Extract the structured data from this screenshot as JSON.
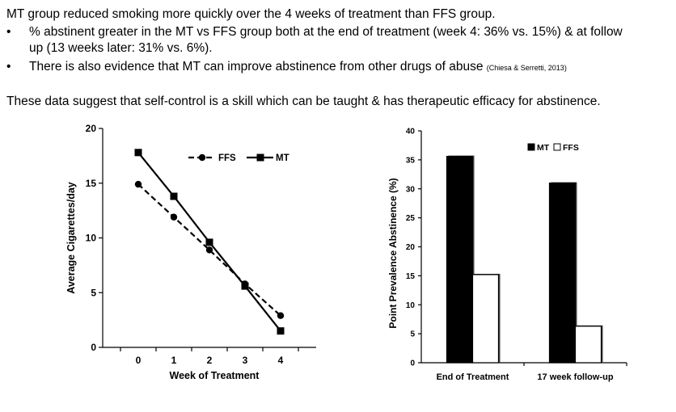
{
  "slide": {
    "heading": "MT group reduced smoking more quickly over the 4 weeks of treatment than FFS group.",
    "bullets": [
      {
        "symbol": "•",
        "line1": "% abstinent greater in the MT vs FFS group both at the end of treatment (week 4: 36% vs. 15%) & at follow",
        "line2": "up (13 weeks later: 31% vs. 6%)."
      },
      {
        "symbol": "•",
        "line1": "There is also evidence that MT can improve abstinence from other drugs of abuse",
        "citation": "(Chiesa & Serretti, 2013)"
      }
    ],
    "conclusion": "These data suggest that self-control is a skill which can be taught & has therapeutic efficacy for abstinence."
  },
  "chart_data": [
    {
      "type": "line",
      "x": [
        0,
        1,
        2,
        3,
        4
      ],
      "xlabel": "Week of Treatment",
      "ylabel": "Average Cigarettes/day",
      "ylim": [
        0,
        20
      ],
      "xlim": [
        -1,
        5
      ],
      "yticks": [
        0,
        5,
        10,
        15,
        20
      ],
      "legend_position": "top",
      "series": [
        {
          "name": "FFS",
          "values": [
            14.9,
            11.9,
            8.9,
            5.8,
            2.9
          ],
          "style": "dashed",
          "marker": "circle",
          "color": "#000000"
        },
        {
          "name": "MT",
          "values": [
            17.8,
            13.8,
            9.6,
            5.6,
            1.5
          ],
          "style": "solid",
          "marker": "square",
          "color": "#000000"
        }
      ]
    },
    {
      "type": "bar",
      "categories": [
        "End of Treatment",
        "17 week follow-up"
      ],
      "ylabel": "Point Prevalence Abstinence (%)",
      "ylim": [
        0,
        40
      ],
      "yticks": [
        0,
        5,
        10,
        15,
        20,
        25,
        30,
        35,
        40
      ],
      "legend_position": "top-right",
      "series": [
        {
          "name": "MT",
          "values": [
            35.6,
            31.0
          ],
          "fill": "#000000"
        },
        {
          "name": "FFS",
          "values": [
            15.2,
            6.3
          ],
          "fill": "#ffffff"
        }
      ]
    }
  ]
}
